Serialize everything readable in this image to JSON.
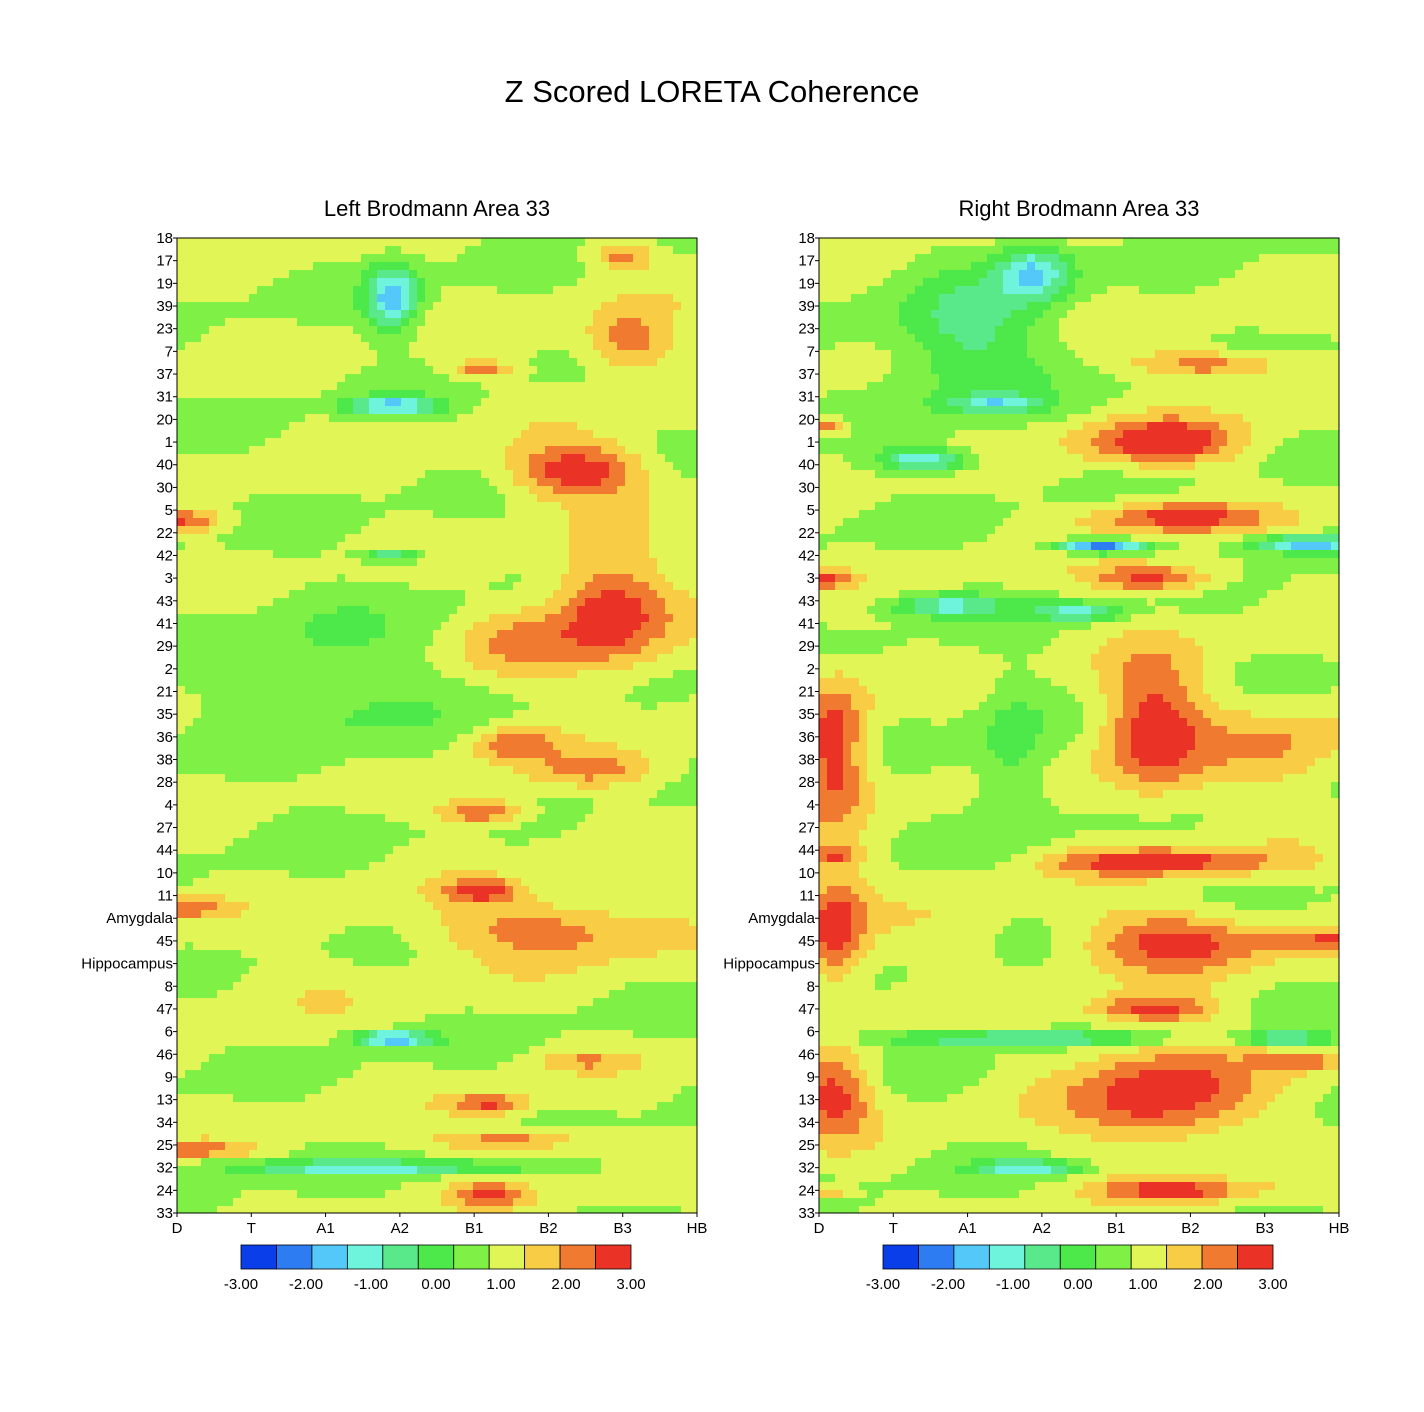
{
  "title": "Z Scored LORETA Coherence",
  "colorbar": {
    "ticks": [
      "-3.00",
      "-2.00",
      "-1.00",
      "0.00",
      "1.00",
      "2.00",
      "3.00"
    ],
    "colors": [
      "#0a3ee8",
      "#2e7cf2",
      "#54c8f8",
      "#6ef3dc",
      "#59e88a",
      "#4de84a",
      "#7ef046",
      "#e2f556",
      "#f8cc44",
      "#f07a30",
      "#ea3326"
    ]
  },
  "chart_data": [
    {
      "type": "heatmap",
      "title": "Left Brodmann Area 33",
      "x_categories": [
        "D",
        "T",
        "A1",
        "A2",
        "B1",
        "B2",
        "B3",
        "HB"
      ],
      "y_categories": [
        "18",
        "17",
        "19",
        "39",
        "23",
        "7",
        "37",
        "31",
        "20",
        "1",
        "40",
        "30",
        "5",
        "22",
        "42",
        "3",
        "43",
        "41",
        "29",
        "2",
        "21",
        "35",
        "36",
        "38",
        "28",
        "4",
        "27",
        "44",
        "10",
        "11",
        "Amygdala",
        "45",
        "Hippocampus",
        "8",
        "47",
        "6",
        "46",
        "9",
        "13",
        "34",
        "25",
        "32",
        "24",
        "33"
      ],
      "z_range": [
        -3,
        3
      ],
      "hotspots": [
        {
          "x": 5.4,
          "y": 10.3,
          "rx": 0.9,
          "ry": 1.2,
          "z": 3.0
        },
        {
          "x": 5.8,
          "y": 16.5,
          "rx": 0.8,
          "ry": 2.6,
          "z": 2.9
        },
        {
          "x": 4.6,
          "y": 17.8,
          "rx": 0.7,
          "ry": 1.5,
          "z": 1.8
        },
        {
          "x": 6.1,
          "y": 4.6,
          "rx": 0.6,
          "ry": 1.4,
          "z": 2.4
        },
        {
          "x": 4.1,
          "y": 5.8,
          "rx": 0.4,
          "ry": 0.4,
          "z": 2.3
        },
        {
          "x": 6.0,
          "y": 0.8,
          "rx": 0.4,
          "ry": 0.6,
          "z": 2.2
        },
        {
          "x": 4.1,
          "y": 25.3,
          "rx": 0.6,
          "ry": 0.6,
          "z": 2.7
        },
        {
          "x": 4.1,
          "y": 28.8,
          "rx": 0.5,
          "ry": 0.5,
          "z": 2.6
        },
        {
          "x": 5.0,
          "y": 30.5,
          "rx": 1.6,
          "ry": 1.3,
          "z": 2.3
        },
        {
          "x": 4.5,
          "y": 22.3,
          "rx": 0.6,
          "ry": 0.7,
          "z": 2.2
        },
        {
          "x": 5.6,
          "y": 23.5,
          "rx": 1.0,
          "ry": 0.8,
          "z": 2.0
        },
        {
          "x": 4.2,
          "y": 38.2,
          "rx": 0.5,
          "ry": 0.5,
          "z": 2.5
        },
        {
          "x": 4.5,
          "y": 39.8,
          "rx": 1.0,
          "ry": 0.5,
          "z": 2.4
        },
        {
          "x": 4.2,
          "y": 42.2,
          "rx": 0.5,
          "ry": 0.5,
          "z": 2.4
        },
        {
          "x": 5.5,
          "y": 36.3,
          "rx": 0.6,
          "ry": 0.4,
          "z": 1.8
        },
        {
          "x": 0.1,
          "y": 12.5,
          "rx": 0.5,
          "ry": 0.5,
          "z": 2.5
        },
        {
          "x": 0.1,
          "y": 29.5,
          "rx": 0.5,
          "ry": 0.5,
          "z": 2.3
        },
        {
          "x": 0.2,
          "y": 40.2,
          "rx": 0.7,
          "ry": 0.3,
          "z": 2.2
        },
        {
          "x": 2.9,
          "y": 2.6,
          "rx": 0.35,
          "ry": 1.5,
          "z": -1.6
        },
        {
          "x": 2.9,
          "y": 7.4,
          "rx": 0.6,
          "ry": 0.4,
          "z": -1.5
        },
        {
          "x": 2.9,
          "y": 35.3,
          "rx": 0.5,
          "ry": 0.3,
          "z": -2.2
        },
        {
          "x": 2.6,
          "y": 41.0,
          "rx": 2.0,
          "ry": 0.3,
          "z": -1.1
        },
        {
          "x": 2.9,
          "y": 14.0,
          "rx": 0.4,
          "ry": 0.3,
          "z": -0.9
        },
        {
          "x": 2.0,
          "y": 20.0,
          "rx": 1.5,
          "ry": 4.0,
          "z": 0.2
        },
        {
          "x": 1.5,
          "y": 33.0,
          "rx": 1.4,
          "ry": 1.5,
          "z": 1.1
        },
        {
          "x": 1.2,
          "y": 22.5,
          "rx": 1.1,
          "ry": 1.5,
          "z": 1.2
        }
      ]
    },
    {
      "type": "heatmap",
      "title": "Right Brodmann Area 33",
      "x_categories": [
        "D",
        "T",
        "A1",
        "A2",
        "B1",
        "B2",
        "B3",
        "HB"
      ],
      "y_categories": [
        "18",
        "17",
        "19",
        "39",
        "23",
        "7",
        "37",
        "31",
        "20",
        "1",
        "40",
        "30",
        "5",
        "22",
        "42",
        "3",
        "43",
        "41",
        "29",
        "2",
        "21",
        "35",
        "36",
        "38",
        "28",
        "4",
        "27",
        "44",
        "10",
        "11",
        "Amygdala",
        "45",
        "Hippocampus",
        "8",
        "47",
        "6",
        "46",
        "9",
        "13",
        "34",
        "25",
        "32",
        "24",
        "33"
      ],
      "z_range": [
        -3,
        3
      ],
      "hotspots": [
        {
          "x": 4.6,
          "y": 9.0,
          "rx": 1.0,
          "ry": 1.0,
          "z": 3.0
        },
        {
          "x": 4.8,
          "y": 12.3,
          "rx": 1.1,
          "ry": 0.7,
          "z": 2.8
        },
        {
          "x": 4.5,
          "y": 15.0,
          "rx": 0.8,
          "ry": 0.6,
          "z": 2.8
        },
        {
          "x": 4.5,
          "y": 21.5,
          "rx": 0.7,
          "ry": 3.0,
          "z": 2.9
        },
        {
          "x": 4.6,
          "y": 27.5,
          "rx": 1.5,
          "ry": 0.6,
          "z": 2.8
        },
        {
          "x": 4.8,
          "y": 31.0,
          "rx": 1.2,
          "ry": 1.3,
          "z": 2.8
        },
        {
          "x": 4.5,
          "y": 34.0,
          "rx": 0.8,
          "ry": 0.6,
          "z": 2.6
        },
        {
          "x": 4.6,
          "y": 37.8,
          "rx": 1.2,
          "ry": 2.2,
          "z": 2.9
        },
        {
          "x": 4.8,
          "y": 42.0,
          "rx": 1.0,
          "ry": 0.5,
          "z": 2.6
        },
        {
          "x": 5.3,
          "y": 5.6,
          "rx": 1.0,
          "ry": 0.6,
          "z": 2.4
        },
        {
          "x": 6.8,
          "y": 31.0,
          "rx": 0.8,
          "ry": 0.6,
          "z": 2.2
        },
        {
          "x": 6.5,
          "y": 36.3,
          "rx": 0.6,
          "ry": 0.4,
          "z": 2.2
        },
        {
          "x": 0.2,
          "y": 22.5,
          "rx": 0.45,
          "ry": 3.0,
          "z": 2.9
        },
        {
          "x": 0.2,
          "y": 30.5,
          "rx": 0.45,
          "ry": 2.5,
          "z": 2.8
        },
        {
          "x": 0.2,
          "y": 37.8,
          "rx": 0.5,
          "ry": 1.8,
          "z": 2.8
        },
        {
          "x": 0.1,
          "y": 15.0,
          "rx": 0.3,
          "ry": 0.4,
          "z": 2.6
        },
        {
          "x": 0.1,
          "y": 8.3,
          "rx": 0.3,
          "ry": 0.4,
          "z": 2.4
        },
        {
          "x": 0.2,
          "y": 27.2,
          "rx": 0.4,
          "ry": 0.4,
          "z": 2.3
        },
        {
          "x": 0.1,
          "y": 42.1,
          "rx": 0.3,
          "ry": 0.3,
          "z": 2.2
        },
        {
          "x": 3.8,
          "y": 13.6,
          "rx": 0.6,
          "ry": 0.3,
          "z": -2.6
        },
        {
          "x": 6.6,
          "y": 13.5,
          "rx": 0.8,
          "ry": 0.4,
          "z": -1.8
        },
        {
          "x": 1.4,
          "y": 9.8,
          "rx": 0.6,
          "ry": 0.5,
          "z": -1.4
        },
        {
          "x": 2.9,
          "y": 1.5,
          "rx": 0.5,
          "ry": 1.2,
          "z": -1.3
        },
        {
          "x": 1.7,
          "y": 16.2,
          "rx": 0.8,
          "ry": 0.5,
          "z": -1.0
        },
        {
          "x": 3.5,
          "y": 16.5,
          "rx": 0.6,
          "ry": 0.4,
          "z": -1.0
        },
        {
          "x": 2.7,
          "y": 35.3,
          "rx": 1.8,
          "ry": 0.3,
          "z": -1.2
        },
        {
          "x": 6.3,
          "y": 35.3,
          "rx": 0.6,
          "ry": 0.3,
          "z": -1.2
        },
        {
          "x": 2.8,
          "y": 41.0,
          "rx": 0.7,
          "ry": 0.3,
          "z": -1.3
        },
        {
          "x": 2.0,
          "y": 4.5,
          "rx": 1.0,
          "ry": 3.0,
          "z": -0.5
        },
        {
          "x": 2.6,
          "y": 23.0,
          "rx": 0.5,
          "ry": 3.5,
          "z": 0.0
        },
        {
          "x": 2.4,
          "y": 7.3,
          "rx": 0.6,
          "ry": 0.4,
          "z": -0.7
        },
        {
          "x": 6.2,
          "y": 22.5,
          "rx": 1.0,
          "ry": 2.0,
          "z": 1.8
        },
        {
          "x": 1.8,
          "y": 31.0,
          "rx": 0.8,
          "ry": 1.5,
          "z": 1.2
        }
      ]
    }
  ]
}
